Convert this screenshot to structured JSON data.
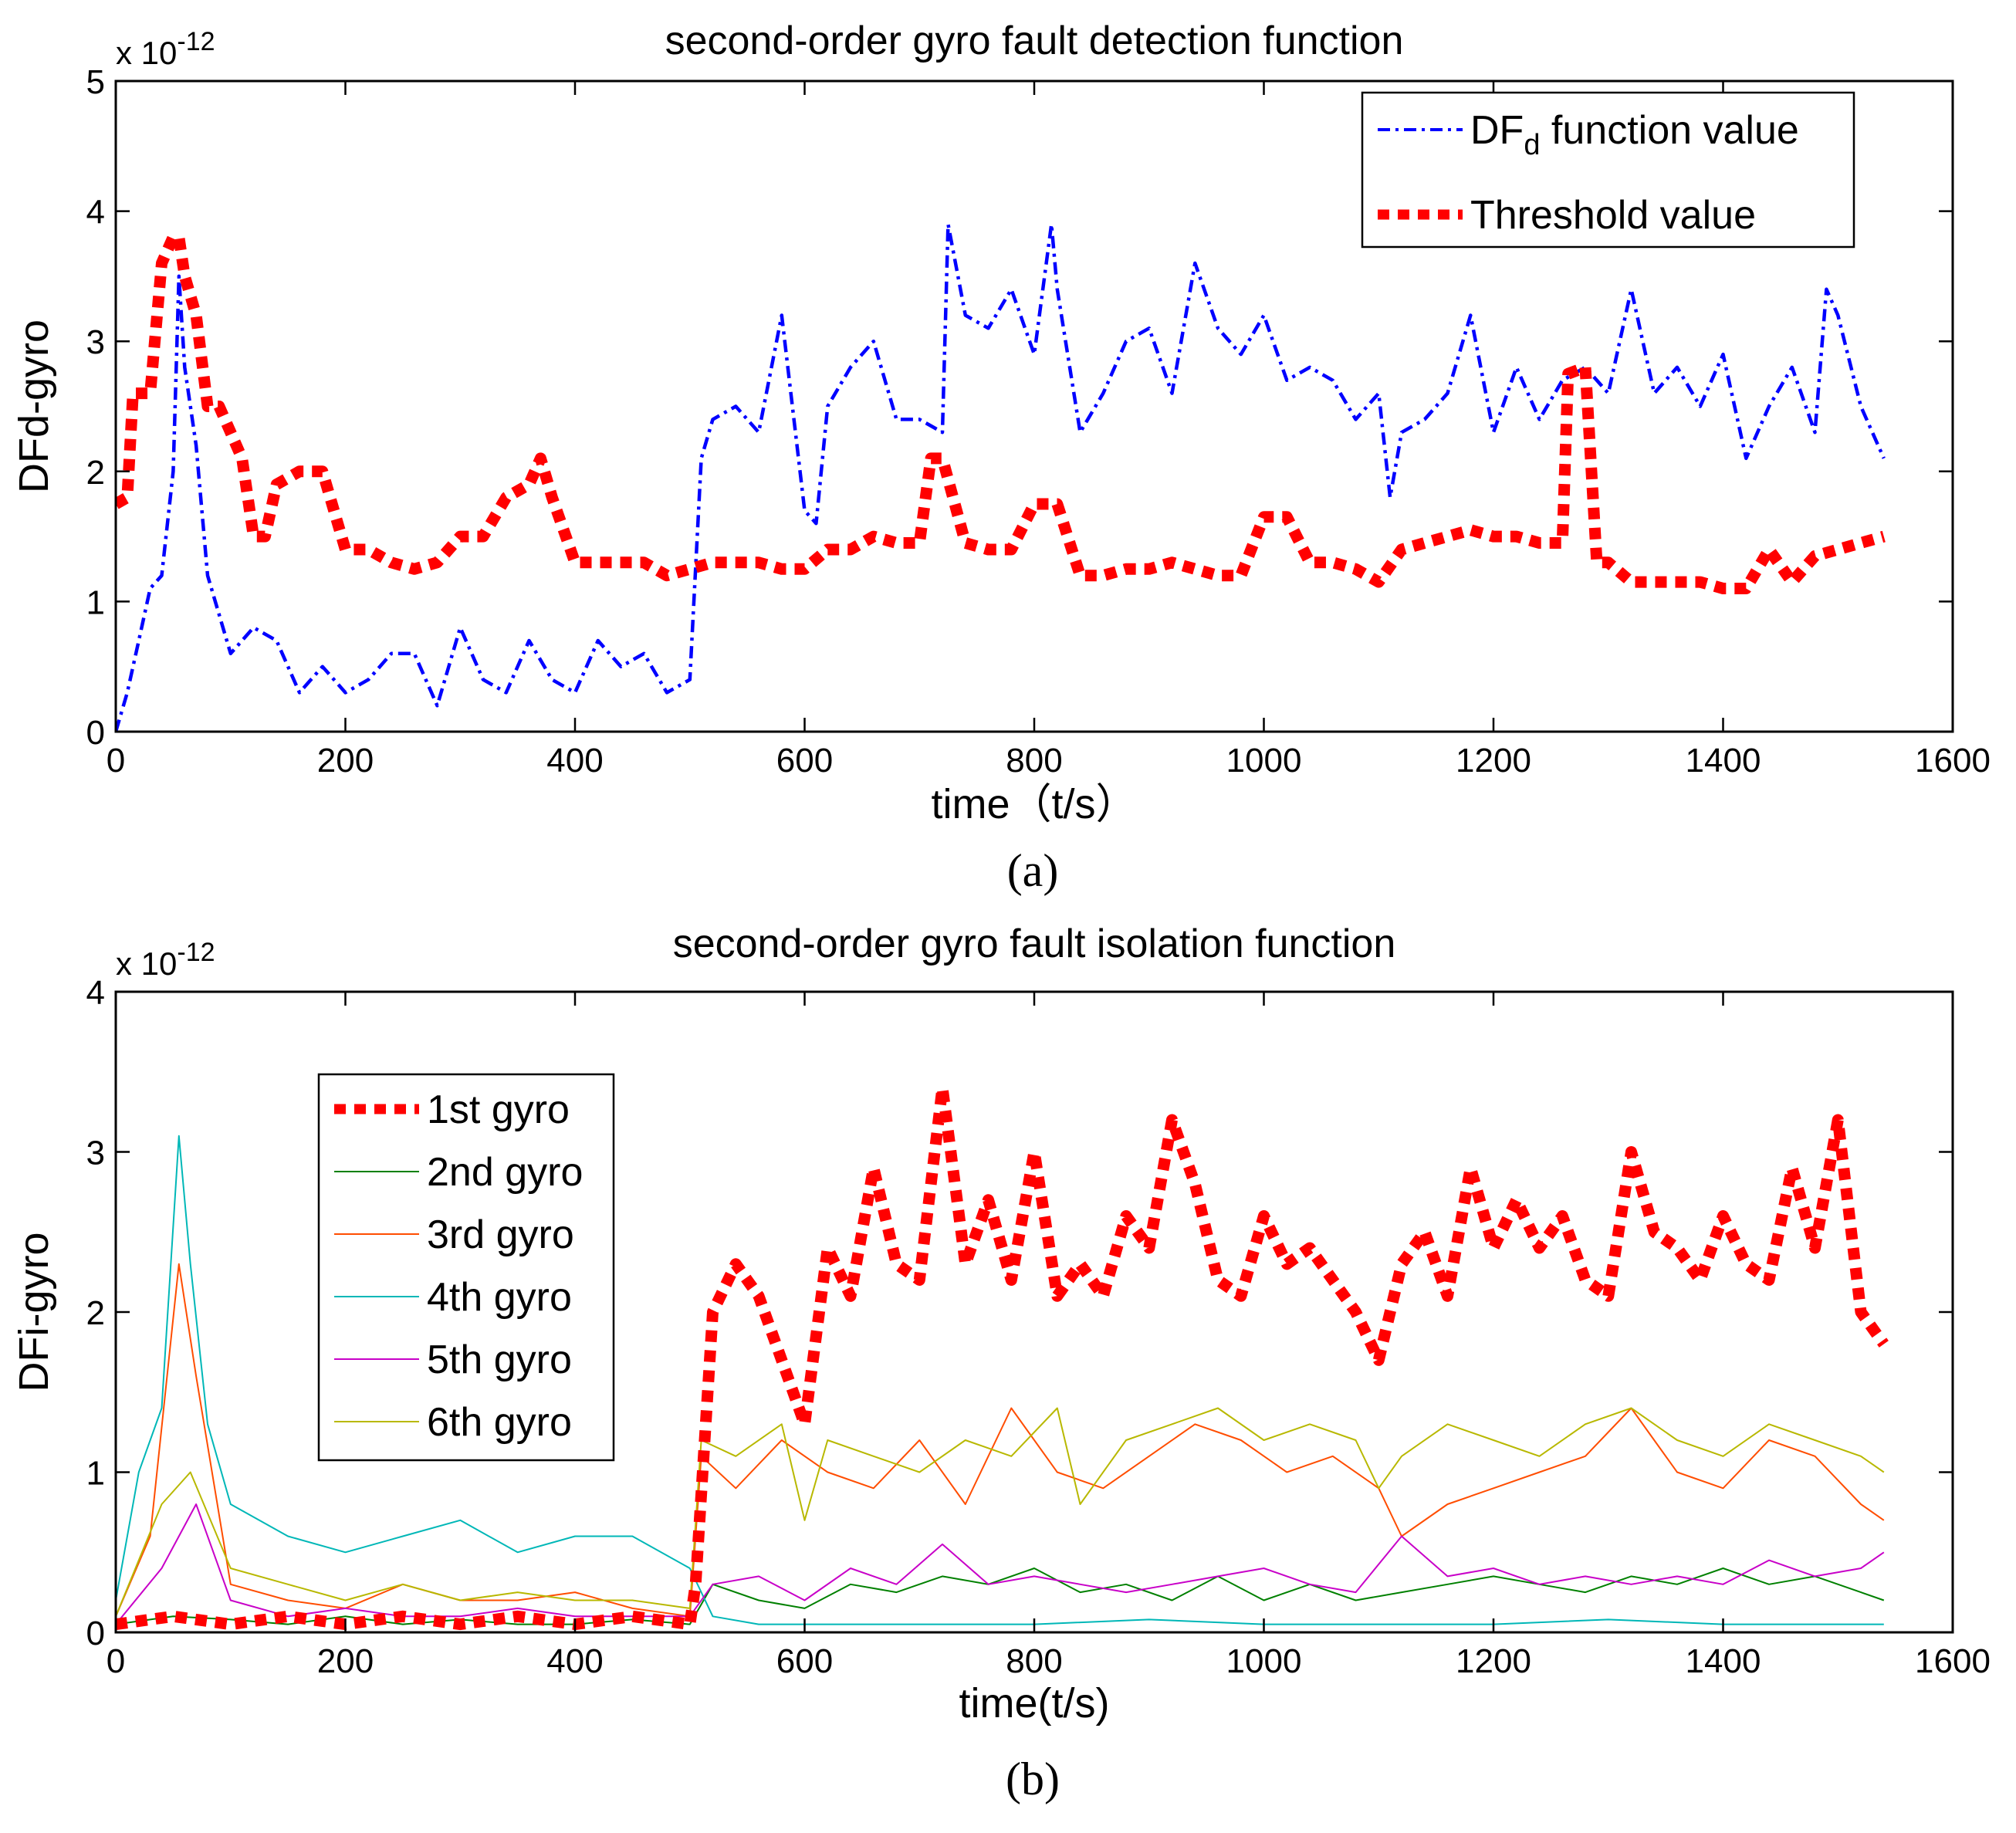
{
  "chart_data": [
    {
      "type": "line",
      "panel": "a",
      "caption": "(a)",
      "title": "second-order gyro fault detection function",
      "xlabel": "time（t/s）",
      "ylabel": "DFd-gyro",
      "exponent_label": "x 10",
      "exponent_power": "-12",
      "xlim": [
        0,
        1600
      ],
      "ylim": [
        0,
        5
      ],
      "xticks": [
        "0",
        "200",
        "400",
        "600",
        "800",
        "1000",
        "1200",
        "1400",
        "1600"
      ],
      "yticks": [
        "0",
        "1",
        "2",
        "3",
        "4",
        "5"
      ],
      "legend_position": "top-right",
      "series": [
        {
          "name": "DF",
          "name_subscript": "d",
          "name_suffix": " function value",
          "color": "#0000ff",
          "style": "dashdot",
          "x": [
            0,
            10,
            20,
            30,
            40,
            50,
            55,
            60,
            70,
            80,
            90,
            100,
            120,
            140,
            160,
            180,
            200,
            220,
            240,
            260,
            280,
            300,
            320,
            340,
            360,
            380,
            400,
            420,
            440,
            460,
            480,
            500,
            510,
            520,
            540,
            560,
            580,
            600,
            610,
            620,
            640,
            660,
            680,
            700,
            720,
            725,
            740,
            760,
            780,
            800,
            815,
            820,
            840,
            860,
            880,
            900,
            920,
            940,
            960,
            980,
            1000,
            1020,
            1040,
            1060,
            1080,
            1100,
            1110,
            1120,
            1140,
            1160,
            1180,
            1200,
            1220,
            1240,
            1260,
            1280,
            1300,
            1320,
            1340,
            1360,
            1380,
            1400,
            1420,
            1440,
            1460,
            1480,
            1490,
            1500,
            1520,
            1540
          ],
          "values": [
            0.0,
            0.3,
            0.7,
            1.1,
            1.2,
            2.0,
            3.5,
            2.8,
            2.2,
            1.2,
            0.9,
            0.6,
            0.8,
            0.7,
            0.3,
            0.5,
            0.3,
            0.4,
            0.6,
            0.6,
            0.2,
            0.8,
            0.4,
            0.3,
            0.7,
            0.4,
            0.3,
            0.7,
            0.5,
            0.6,
            0.3,
            0.4,
            2.1,
            2.4,
            2.5,
            2.3,
            3.2,
            1.7,
            1.6,
            2.5,
            2.8,
            3.0,
            2.4,
            2.4,
            2.3,
            3.9,
            3.2,
            3.1,
            3.4,
            2.9,
            3.9,
            3.4,
            2.3,
            2.6,
            3.0,
            3.1,
            2.6,
            3.6,
            3.1,
            2.9,
            3.2,
            2.7,
            2.8,
            2.7,
            2.4,
            2.6,
            1.8,
            2.3,
            2.4,
            2.6,
            3.2,
            2.3,
            2.8,
            2.4,
            2.7,
            2.8,
            2.6,
            3.4,
            2.6,
            2.8,
            2.5,
            2.9,
            2.1,
            2.5,
            2.8,
            2.3,
            3.4,
            3.2,
            2.5,
            2.1
          ]
        },
        {
          "name": "Threshold value",
          "color": "#ff0000",
          "style": "thick-dotted",
          "x": [
            0,
            10,
            15,
            20,
            30,
            40,
            50,
            55,
            60,
            70,
            80,
            90,
            100,
            110,
            120,
            130,
            140,
            160,
            180,
            200,
            220,
            240,
            260,
            280,
            300,
            320,
            340,
            360,
            370,
            380,
            400,
            420,
            440,
            460,
            480,
            500,
            520,
            540,
            560,
            580,
            600,
            620,
            640,
            660,
            680,
            700,
            710,
            720,
            740,
            760,
            780,
            800,
            820,
            840,
            860,
            880,
            900,
            920,
            940,
            960,
            980,
            1000,
            1020,
            1040,
            1060,
            1080,
            1100,
            1120,
            1140,
            1160,
            1180,
            1200,
            1220,
            1240,
            1260,
            1265,
            1280,
            1290,
            1300,
            1320,
            1340,
            1360,
            1380,
            1400,
            1420,
            1440,
            1460,
            1480,
            1500,
            1520,
            1540
          ],
          "values": [
            1.75,
            1.8,
            2.6,
            2.6,
            2.6,
            3.6,
            3.8,
            3.8,
            3.5,
            3.2,
            2.5,
            2.5,
            2.3,
            2.1,
            1.5,
            1.5,
            1.9,
            2.0,
            2.0,
            1.4,
            1.4,
            1.3,
            1.25,
            1.3,
            1.5,
            1.5,
            1.8,
            1.9,
            2.1,
            1.8,
            1.3,
            1.3,
            1.3,
            1.3,
            1.2,
            1.25,
            1.3,
            1.3,
            1.3,
            1.25,
            1.25,
            1.4,
            1.4,
            1.5,
            1.45,
            1.45,
            2.1,
            2.1,
            1.45,
            1.4,
            1.4,
            1.75,
            1.75,
            1.2,
            1.2,
            1.25,
            1.25,
            1.3,
            1.25,
            1.2,
            1.2,
            1.65,
            1.65,
            1.3,
            1.3,
            1.25,
            1.15,
            1.4,
            1.45,
            1.5,
            1.55,
            1.5,
            1.5,
            1.45,
            1.45,
            2.75,
            2.8,
            1.3,
            1.3,
            1.15,
            1.15,
            1.15,
            1.15,
            1.1,
            1.1,
            1.4,
            1.15,
            1.35,
            1.4,
            1.45,
            1.5
          ]
        }
      ]
    },
    {
      "type": "line",
      "panel": "b",
      "caption": "(b)",
      "title": "second-order gyro fault isolation function",
      "xlabel": "time(t/s)",
      "ylabel": "DFi-gyro",
      "exponent_label": "x 10",
      "exponent_power": "-12",
      "xlim": [
        0,
        1600
      ],
      "ylim": [
        0,
        4
      ],
      "xticks": [
        "0",
        "200",
        "400",
        "600",
        "800",
        "1000",
        "1200",
        "1400",
        "1600"
      ],
      "yticks": [
        "0",
        "1",
        "2",
        "3",
        "4"
      ],
      "legend_position": "top-left",
      "series": [
        {
          "name": "1st gyro",
          "color": "#ff0000",
          "style": "thick-dotted",
          "x": [
            0,
            50,
            100,
            150,
            200,
            250,
            300,
            350,
            400,
            450,
            500,
            505,
            520,
            540,
            560,
            580,
            600,
            620,
            640,
            660,
            680,
            700,
            720,
            740,
            760,
            780,
            800,
            820,
            840,
            860,
            880,
            900,
            920,
            940,
            960,
            980,
            1000,
            1020,
            1040,
            1060,
            1080,
            1100,
            1120,
            1140,
            1160,
            1180,
            1200,
            1220,
            1240,
            1260,
            1280,
            1300,
            1320,
            1340,
            1360,
            1380,
            1400,
            1420,
            1440,
            1460,
            1480,
            1500,
            1520,
            1540
          ],
          "values": [
            0.05,
            0.1,
            0.05,
            0.1,
            0.05,
            0.1,
            0.05,
            0.1,
            0.05,
            0.1,
            0.05,
            0.3,
            2.0,
            2.3,
            2.1,
            1.7,
            1.3,
            2.4,
            2.1,
            2.9,
            2.3,
            2.2,
            3.4,
            2.3,
            2.7,
            2.2,
            3.0,
            2.1,
            2.3,
            2.1,
            2.6,
            2.4,
            3.2,
            2.8,
            2.2,
            2.1,
            2.6,
            2.3,
            2.4,
            2.2,
            2.0,
            1.7,
            2.3,
            2.5,
            2.1,
            2.9,
            2.4,
            2.7,
            2.4,
            2.6,
            2.2,
            2.1,
            3.0,
            2.5,
            2.4,
            2.2,
            2.6,
            2.3,
            2.2,
            2.9,
            2.4,
            3.2,
            2.0,
            1.8
          ]
        },
        {
          "name": "2nd gyro",
          "color": "#008000",
          "style": "thin",
          "x": [
            0,
            50,
            100,
            150,
            200,
            250,
            300,
            350,
            400,
            450,
            500,
            520,
            560,
            600,
            640,
            680,
            720,
            760,
            800,
            840,
            880,
            920,
            960,
            1000,
            1040,
            1080,
            1120,
            1160,
            1200,
            1240,
            1280,
            1320,
            1360,
            1400,
            1440,
            1480,
            1520,
            1540
          ],
          "values": [
            0.05,
            0.1,
            0.08,
            0.05,
            0.1,
            0.05,
            0.08,
            0.05,
            0.05,
            0.08,
            0.05,
            0.3,
            0.2,
            0.15,
            0.3,
            0.25,
            0.35,
            0.3,
            0.4,
            0.25,
            0.3,
            0.2,
            0.35,
            0.2,
            0.3,
            0.2,
            0.25,
            0.3,
            0.35,
            0.3,
            0.25,
            0.35,
            0.3,
            0.4,
            0.3,
            0.35,
            0.25,
            0.2
          ]
        },
        {
          "name": "3rd gyro",
          "color": "#ff4d00",
          "style": "thin",
          "x": [
            0,
            30,
            55,
            70,
            100,
            150,
            200,
            250,
            300,
            350,
            400,
            450,
            500,
            510,
            540,
            580,
            620,
            660,
            700,
            740,
            780,
            820,
            860,
            900,
            940,
            980,
            1020,
            1060,
            1100,
            1120,
            1160,
            1200,
            1240,
            1280,
            1320,
            1360,
            1400,
            1440,
            1480,
            1520,
            1540
          ],
          "values": [
            0.1,
            0.6,
            2.3,
            1.6,
            0.3,
            0.2,
            0.15,
            0.3,
            0.2,
            0.2,
            0.25,
            0.15,
            0.1,
            1.1,
            0.9,
            1.2,
            1.0,
            0.9,
            1.2,
            0.8,
            1.4,
            1.0,
            0.9,
            1.1,
            1.3,
            1.2,
            1.0,
            1.1,
            0.9,
            0.6,
            0.8,
            0.9,
            1.0,
            1.1,
            1.4,
            1.0,
            0.9,
            1.2,
            1.1,
            0.8,
            0.7
          ]
        },
        {
          "name": "4th gyro",
          "color": "#00b7b7",
          "style": "thin",
          "x": [
            0,
            20,
            40,
            55,
            65,
            80,
            100,
            150,
            200,
            250,
            300,
            350,
            400,
            450,
            500,
            520,
            560,
            600,
            700,
            800,
            900,
            1000,
            1100,
            1200,
            1300,
            1400,
            1500,
            1540
          ],
          "values": [
            0.2,
            1.0,
            1.4,
            3.1,
            2.3,
            1.3,
            0.8,
            0.6,
            0.5,
            0.6,
            0.7,
            0.5,
            0.6,
            0.6,
            0.4,
            0.1,
            0.05,
            0.05,
            0.05,
            0.05,
            0.08,
            0.05,
            0.05,
            0.05,
            0.08,
            0.05,
            0.05,
            0.05
          ]
        },
        {
          "name": "5th gyro",
          "color": "#c800c8",
          "style": "thin",
          "x": [
            0,
            40,
            70,
            100,
            150,
            200,
            250,
            300,
            350,
            400,
            450,
            500,
            520,
            560,
            600,
            640,
            680,
            720,
            760,
            800,
            840,
            880,
            920,
            960,
            1000,
            1040,
            1080,
            1120,
            1160,
            1200,
            1240,
            1280,
            1320,
            1360,
            1400,
            1440,
            1480,
            1520,
            1540
          ],
          "values": [
            0.05,
            0.4,
            0.8,
            0.2,
            0.1,
            0.15,
            0.1,
            0.1,
            0.15,
            0.1,
            0.1,
            0.1,
            0.3,
            0.35,
            0.2,
            0.4,
            0.3,
            0.55,
            0.3,
            0.35,
            0.3,
            0.25,
            0.3,
            0.35,
            0.4,
            0.3,
            0.25,
            0.6,
            0.35,
            0.4,
            0.3,
            0.35,
            0.3,
            0.35,
            0.3,
            0.45,
            0.35,
            0.4,
            0.5
          ]
        },
        {
          "name": "6th gyro",
          "color": "#b8b800",
          "style": "thin",
          "x": [
            0,
            40,
            65,
            100,
            150,
            200,
            250,
            300,
            350,
            400,
            450,
            500,
            510,
            540,
            580,
            600,
            620,
            660,
            700,
            740,
            780,
            820,
            840,
            880,
            920,
            960,
            1000,
            1040,
            1080,
            1100,
            1120,
            1160,
            1200,
            1240,
            1280,
            1320,
            1360,
            1400,
            1440,
            1480,
            1520,
            1540
          ],
          "values": [
            0.1,
            0.8,
            1.0,
            0.4,
            0.3,
            0.2,
            0.3,
            0.2,
            0.25,
            0.2,
            0.2,
            0.15,
            1.2,
            1.1,
            1.3,
            0.7,
            1.2,
            1.1,
            1.0,
            1.2,
            1.1,
            1.4,
            0.8,
            1.2,
            1.3,
            1.4,
            1.2,
            1.3,
            1.2,
            0.9,
            1.1,
            1.3,
            1.2,
            1.1,
            1.3,
            1.4,
            1.2,
            1.1,
            1.3,
            1.2,
            1.1,
            1.0
          ]
        }
      ]
    }
  ]
}
